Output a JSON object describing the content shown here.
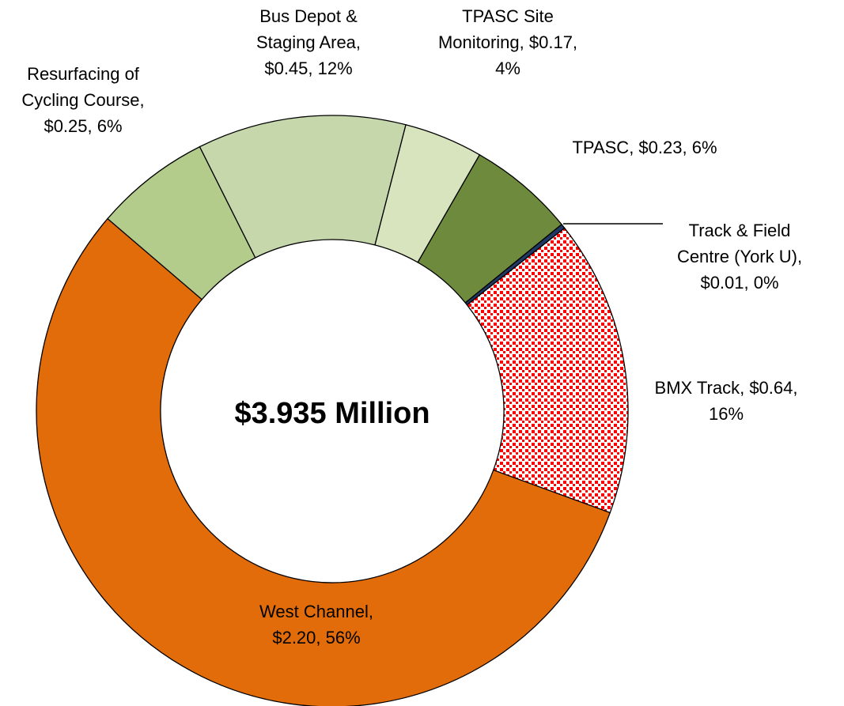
{
  "chart_data": {
    "type": "donut",
    "center_label": "$3.935 Million",
    "start_angle": 14.4,
    "values": [
      0.17,
      0.23,
      0.01,
      0.64,
      2.2,
      0.25,
      0.45
    ],
    "percents": [
      4,
      6,
      0,
      16,
      56,
      6,
      12
    ],
    "labels": [
      [
        "TPASC Site",
        "Monitoring, $0.17,",
        "4%"
      ],
      [
        "TPASC, $0.23, 6%"
      ],
      [
        "Track & Field",
        "Centre (York U),",
        "$0.01, 0%"
      ],
      [
        "BMX Track, $0.64,",
        "16%"
      ],
      [
        "West Channel,",
        "$2.20, 56%"
      ],
      [
        "Resurfacing of",
        "Cycling Course,",
        "$0.25, 6%"
      ],
      [
        "Bus Depot &",
        "Staging Area,",
        "$0.45, 12%"
      ]
    ],
    "colors": [
      "#d7e4bd",
      "#6e8b3d",
      "#1f3864",
      "#ff0000",
      "#e36c0a",
      "#b3cb8b",
      "#c6d7ac"
    ],
    "patterns": [
      null,
      null,
      null,
      "dots",
      null,
      null,
      null
    ]
  }
}
